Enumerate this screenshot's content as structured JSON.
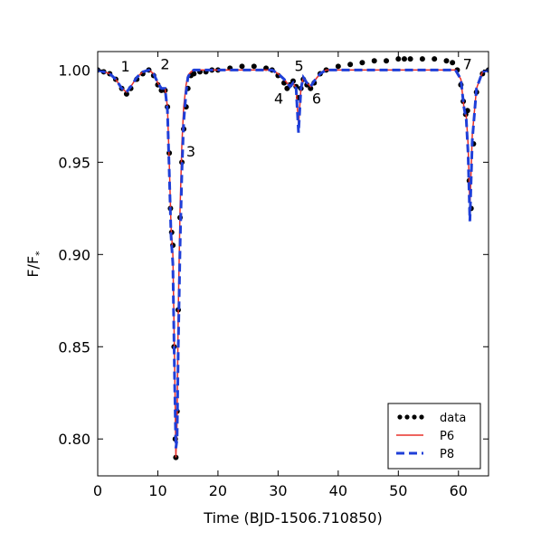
{
  "chart_data": {
    "type": "line",
    "title": "",
    "xlabel": "Time (BJD-1506.710850)",
    "ylabel_main": "F/F",
    "ylabel_sub": "*",
    "xlim": [
      0,
      65
    ],
    "ylim": [
      0.78,
      1.01
    ],
    "x_ticks": [
      0,
      10,
      20,
      30,
      40,
      50,
      60
    ],
    "x_tick_labels": [
      "0",
      "10",
      "20",
      "30",
      "40",
      "50",
      "60"
    ],
    "y_ticks": [
      0.8,
      0.85,
      0.9,
      0.95,
      1.0
    ],
    "y_tick_labels": [
      "0.80",
      "0.85",
      "0.90",
      "0.95",
      "1.00"
    ],
    "grid": false,
    "legend_position": "lower-right",
    "annotations": [
      {
        "text": "1",
        "x": 4.6,
        "y": 0.9993
      },
      {
        "text": "2",
        "x": 11.2,
        "y": 1.0005
      },
      {
        "text": "3",
        "x": 15.5,
        "y": 0.9532
      },
      {
        "text": "4",
        "x": 30.1,
        "y": 0.9819
      },
      {
        "text": "5",
        "x": 33.5,
        "y": 0.9994
      },
      {
        "text": "6",
        "x": 36.4,
        "y": 0.9819
      },
      {
        "text": "7",
        "x": 61.5,
        "y": 1.0004
      }
    ],
    "series": [
      {
        "name": "data",
        "style": "dots",
        "color": "#000000",
        "x": [
          0,
          1,
          2,
          3,
          4,
          4.8,
          5.5,
          6.5,
          7.5,
          8.5,
          9.3,
          10.0,
          10.6,
          11.2,
          11.6,
          11.9,
          12.1,
          12.3,
          12.5,
          12.7,
          12.9,
          13.0,
          13.2,
          13.4,
          13.7,
          14.0,
          14.3,
          14.7,
          15.0,
          15.5,
          16.0,
          17,
          18,
          19,
          20,
          22,
          24,
          26,
          28,
          29,
          30,
          31,
          31.5,
          32,
          32.5,
          33.0,
          33.4,
          33.8,
          34.2,
          34.8,
          35.4,
          36.0,
          37,
          38,
          40,
          42,
          44,
          46,
          48,
          50,
          51,
          52,
          54,
          56,
          58,
          59,
          59.8,
          60.4,
          60.8,
          61.2,
          61.5,
          61.8,
          62.1,
          62.5,
          63,
          64,
          65
        ],
        "y": [
          1.0,
          0.999,
          0.998,
          0.995,
          0.99,
          0.987,
          0.99,
          0.995,
          0.998,
          1.0,
          0.997,
          0.992,
          0.989,
          0.989,
          0.98,
          0.955,
          0.925,
          0.912,
          0.905,
          0.85,
          0.8,
          0.79,
          0.815,
          0.87,
          0.92,
          0.95,
          0.968,
          0.98,
          0.99,
          0.997,
          0.998,
          0.999,
          0.999,
          1.0,
          1.0,
          1.001,
          1.002,
          1.002,
          1.001,
          1.0,
          0.997,
          0.993,
          0.99,
          0.992,
          0.994,
          0.991,
          0.985,
          0.99,
          0.995,
          0.992,
          0.99,
          0.993,
          0.998,
          1.0,
          1.002,
          1.003,
          1.004,
          1.005,
          1.005,
          1.006,
          1.006,
          1.006,
          1.006,
          1.006,
          1.005,
          1.004,
          1.0,
          0.992,
          0.983,
          0.976,
          0.978,
          0.94,
          0.925,
          0.96,
          0.988,
          0.998,
          1.0
        ]
      },
      {
        "name": "P6",
        "style": "solid",
        "color": "#e8302a",
        "x": [
          0,
          1,
          2,
          3,
          4,
          4.8,
          5.5,
          6.5,
          7.5,
          8.5,
          9.3,
          10.0,
          10.6,
          11.2,
          11.6,
          11.9,
          12.2,
          12.5,
          12.8,
          13.0,
          13.2,
          13.4,
          13.7,
          14.0,
          14.3,
          14.7,
          15.0,
          15.5,
          16,
          18,
          20,
          25,
          29,
          30,
          31,
          32,
          32.5,
          33.0,
          33.4,
          33.8,
          34.2,
          34.8,
          35.4,
          36.0,
          37,
          38,
          40,
          45,
          50,
          55,
          58,
          59.5,
          60.4,
          60.9,
          61.3,
          61.6,
          61.9,
          62.3,
          63,
          64,
          65
        ],
        "y": [
          1.0,
          0.999,
          0.998,
          0.995,
          0.99,
          0.988,
          0.991,
          0.996,
          0.999,
          1.0,
          0.998,
          0.993,
          0.99,
          0.99,
          0.98,
          0.95,
          0.915,
          0.9,
          0.84,
          0.79,
          0.81,
          0.87,
          0.925,
          0.96,
          0.98,
          0.992,
          0.997,
          0.999,
          1.0,
          1.0,
          1.0,
          1.0,
          1.0,
          0.998,
          0.995,
          0.991,
          0.993,
          0.99,
          0.97,
          0.99,
          0.996,
          0.993,
          0.991,
          0.994,
          0.998,
          1.0,
          1.0,
          1.0,
          1.0,
          1.0,
          1.0,
          1.0,
          0.995,
          0.98,
          0.975,
          0.96,
          0.925,
          0.965,
          0.99,
          0.999,
          1.0
        ]
      },
      {
        "name": "P8",
        "style": "dashed",
        "color": "#1f3fd8",
        "x": [
          0,
          1,
          2,
          3,
          4,
          4.8,
          5.5,
          6.5,
          7.5,
          8.5,
          9.3,
          10.0,
          10.6,
          11.2,
          11.6,
          11.9,
          12.2,
          12.5,
          12.8,
          13.0,
          13.2,
          13.4,
          13.7,
          14.0,
          14.3,
          14.7,
          15.0,
          15.5,
          16,
          18,
          20,
          25,
          29,
          30,
          31,
          32,
          32.5,
          33.0,
          33.4,
          33.8,
          34.2,
          34.8,
          35.4,
          36.0,
          37,
          38,
          40,
          45,
          50,
          55,
          58,
          59.5,
          60.4,
          60.9,
          61.3,
          61.6,
          61.9,
          62.3,
          63,
          64,
          65
        ],
        "y": [
          1.0,
          0.999,
          0.998,
          0.995,
          0.99,
          0.988,
          0.991,
          0.996,
          0.999,
          1.0,
          0.998,
          0.993,
          0.99,
          0.99,
          0.978,
          0.945,
          0.91,
          0.895,
          0.83,
          0.795,
          0.8,
          0.85,
          0.905,
          0.945,
          0.972,
          0.988,
          0.996,
          0.999,
          1.0,
          1.0,
          1.0,
          1.0,
          1.0,
          0.998,
          0.995,
          0.991,
          0.993,
          0.99,
          0.966,
          0.99,
          0.996,
          0.993,
          0.991,
          0.994,
          0.998,
          1.0,
          1.0,
          1.0,
          1.0,
          1.0,
          1.0,
          1.0,
          0.995,
          0.98,
          0.973,
          0.955,
          0.918,
          0.962,
          0.99,
          0.999,
          1.0
        ]
      }
    ]
  }
}
